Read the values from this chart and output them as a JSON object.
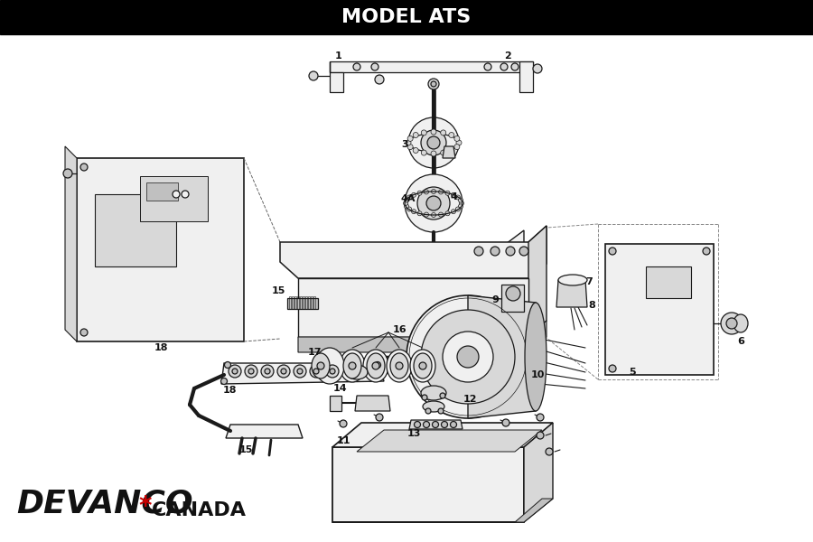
{
  "title": "MODEL ATS",
  "title_bg": "#000000",
  "title_color": "#ffffff",
  "title_fontsize": 16,
  "bg_color": "#ffffff",
  "fig_width": 9.0,
  "fig_height": 6.0,
  "dpi": 100,
  "lc": "#1a1a1a",
  "lw": 0.9,
  "fc_light": "#f0f0f0",
  "fc_mid": "#d8d8d8",
  "fc_dark": "#c0c0c0",
  "brand_devanco": "DEVANCO",
  "brand_canada": "CANADA",
  "brand_star": "*",
  "brand_color": "#111111",
  "brand_star_color": "#cc0000"
}
